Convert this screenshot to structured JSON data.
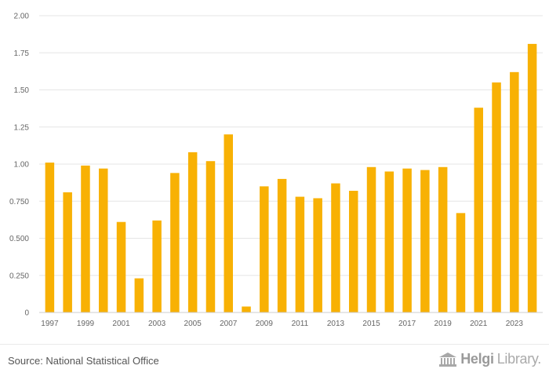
{
  "chart_data": {
    "type": "bar",
    "title": "",
    "xlabel": "",
    "ylabel": "",
    "ylim": [
      0,
      2.0
    ],
    "yticks": [
      0,
      0.25,
      0.5,
      0.75,
      1.0,
      1.25,
      1.5,
      1.75,
      2.0
    ],
    "ytick_labels": [
      "0",
      "0.250",
      "0.500",
      "0.750",
      "1.00",
      "1.25",
      "1.50",
      "1.75",
      "2.00"
    ],
    "categories": [
      "1997",
      "1998",
      "1999",
      "2000",
      "2001",
      "2002",
      "2003",
      "2004",
      "2005",
      "2006",
      "2007",
      "2008",
      "2009",
      "2010",
      "2011",
      "2012",
      "2013",
      "2014",
      "2015",
      "2016",
      "2017",
      "2018",
      "2019",
      "2020",
      "2021",
      "2022",
      "2023",
      "2024"
    ],
    "xtick_labels": [
      "1997",
      "",
      "1999",
      "",
      "2001",
      "",
      "2003",
      "",
      "2005",
      "",
      "2007",
      "",
      "2009",
      "",
      "2011",
      "",
      "2013",
      "",
      "2015",
      "",
      "2017",
      "",
      "2019",
      "",
      "2021",
      "",
      "2023",
      ""
    ],
    "values": [
      1.01,
      0.81,
      0.99,
      0.97,
      0.61,
      0.23,
      0.62,
      0.94,
      1.08,
      1.02,
      1.2,
      0.04,
      0.85,
      0.9,
      0.78,
      0.77,
      0.87,
      0.82,
      0.98,
      0.95,
      0.97,
      0.96,
      0.98,
      0.67,
      1.38,
      1.55,
      1.62,
      1.81
    ],
    "bar_color": "#f8b104",
    "grid": true
  },
  "footer": {
    "source": "Source: National Statistical Office",
    "logo_bold": "Helgi",
    "logo_light": "Library."
  }
}
